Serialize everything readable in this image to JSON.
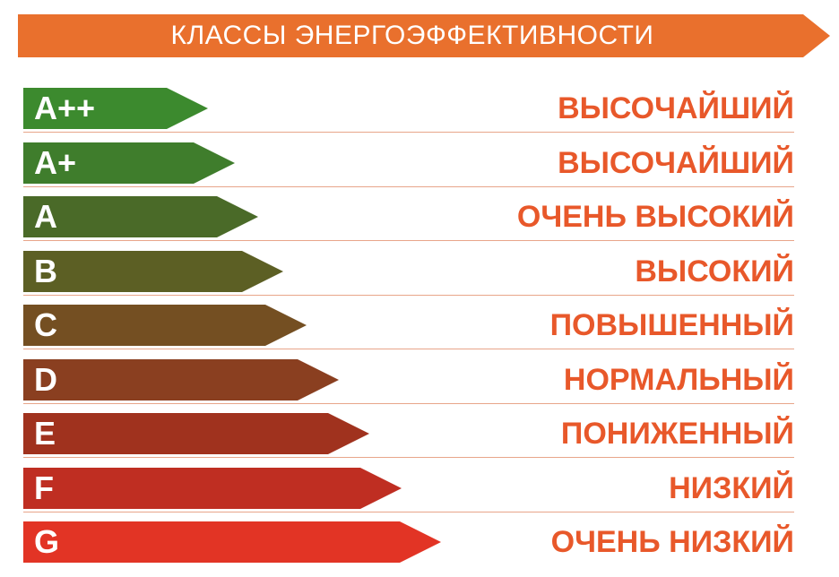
{
  "header": {
    "title": "КЛАССЫ ЭНЕРГОЭФФЕКТИВНОСТИ",
    "color": "#e9702d"
  },
  "classes": [
    {
      "label": "A++",
      "description": "ВЫСОЧАЙШИЙ",
      "color": "#3c8a2e"
    },
    {
      "label": "A+",
      "description": "ВЫСОЧАЙШИЙ",
      "color": "#3f7d2c"
    },
    {
      "label": "A",
      "description": "ОЧЕНЬ ВЫСОКИЙ",
      "color": "#4a6a28"
    },
    {
      "label": "B",
      "description": "ВЫСОКИЙ",
      "color": "#5c5f24"
    },
    {
      "label": "C",
      "description": "ПОВЫШЕННЫЙ",
      "color": "#744f22"
    },
    {
      "label": "D",
      "description": "НОРМАЛЬНЫЙ",
      "color": "#8a3f20"
    },
    {
      "label": "E",
      "description": "ПОНИЖЕННЫЙ",
      "color": "#a0321e"
    },
    {
      "label": "F",
      "description": "НИЗКИЙ",
      "color": "#bf2e22"
    },
    {
      "label": "G",
      "description": "ОЧЕНЬ НИЗКИЙ",
      "color": "#e23425"
    }
  ],
  "description_color": "#e8582a"
}
